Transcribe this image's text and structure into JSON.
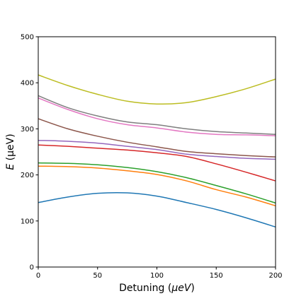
{
  "chart_data": {
    "type": "line",
    "title": "",
    "xlabel": {
      "prefix": "Detuning (",
      "unit": "μeV",
      "suffix": ")"
    },
    "ylabel": {
      "symbol": "E",
      "rest": " (μeV)"
    },
    "xlim": [
      0,
      200
    ],
    "ylim": [
      0,
      500
    ],
    "xticks": [
      0,
      50,
      100,
      150,
      200
    ],
    "yticks": [
      0,
      100,
      200,
      300,
      400,
      500
    ],
    "grid": false,
    "legend": "none",
    "x": [
      0,
      25,
      50,
      75,
      100,
      125,
      150,
      175,
      200
    ],
    "series": [
      {
        "color": "#1f77b4",
        "values": [
          140,
          152,
          160,
          161,
          154,
          140,
          125,
          107,
          87
        ]
      },
      {
        "color": "#ff7f0e",
        "values": [
          219,
          218,
          215,
          209,
          201,
          187,
          168,
          152,
          133
        ]
      },
      {
        "color": "#2ca02c",
        "values": [
          226,
          225,
          222,
          216,
          207,
          194,
          177,
          159,
          139
        ]
      },
      {
        "color": "#d62728",
        "values": [
          265,
          262,
          258,
          254,
          248,
          240,
          224,
          206,
          187
        ]
      },
      {
        "color": "#9467bd",
        "values": [
          275,
          273,
          269,
          262,
          255,
          245,
          240,
          236,
          234
        ]
      },
      {
        "color": "#8c564b",
        "values": [
          322,
          300,
          284,
          271,
          261,
          251,
          246,
          242,
          239
        ]
      },
      {
        "color": "#e377c2",
        "values": [
          367,
          342,
          322,
          309,
          302,
          293,
          288,
          287,
          285
        ]
      },
      {
        "color": "#7f7f7f",
        "values": [
          372,
          346,
          328,
          315,
          309,
          300,
          294,
          291,
          288
        ]
      },
      {
        "color": "#bcbd22",
        "values": [
          417,
          394,
          375,
          360,
          354,
          357,
          370,
          387,
          408
        ]
      }
    ]
  }
}
